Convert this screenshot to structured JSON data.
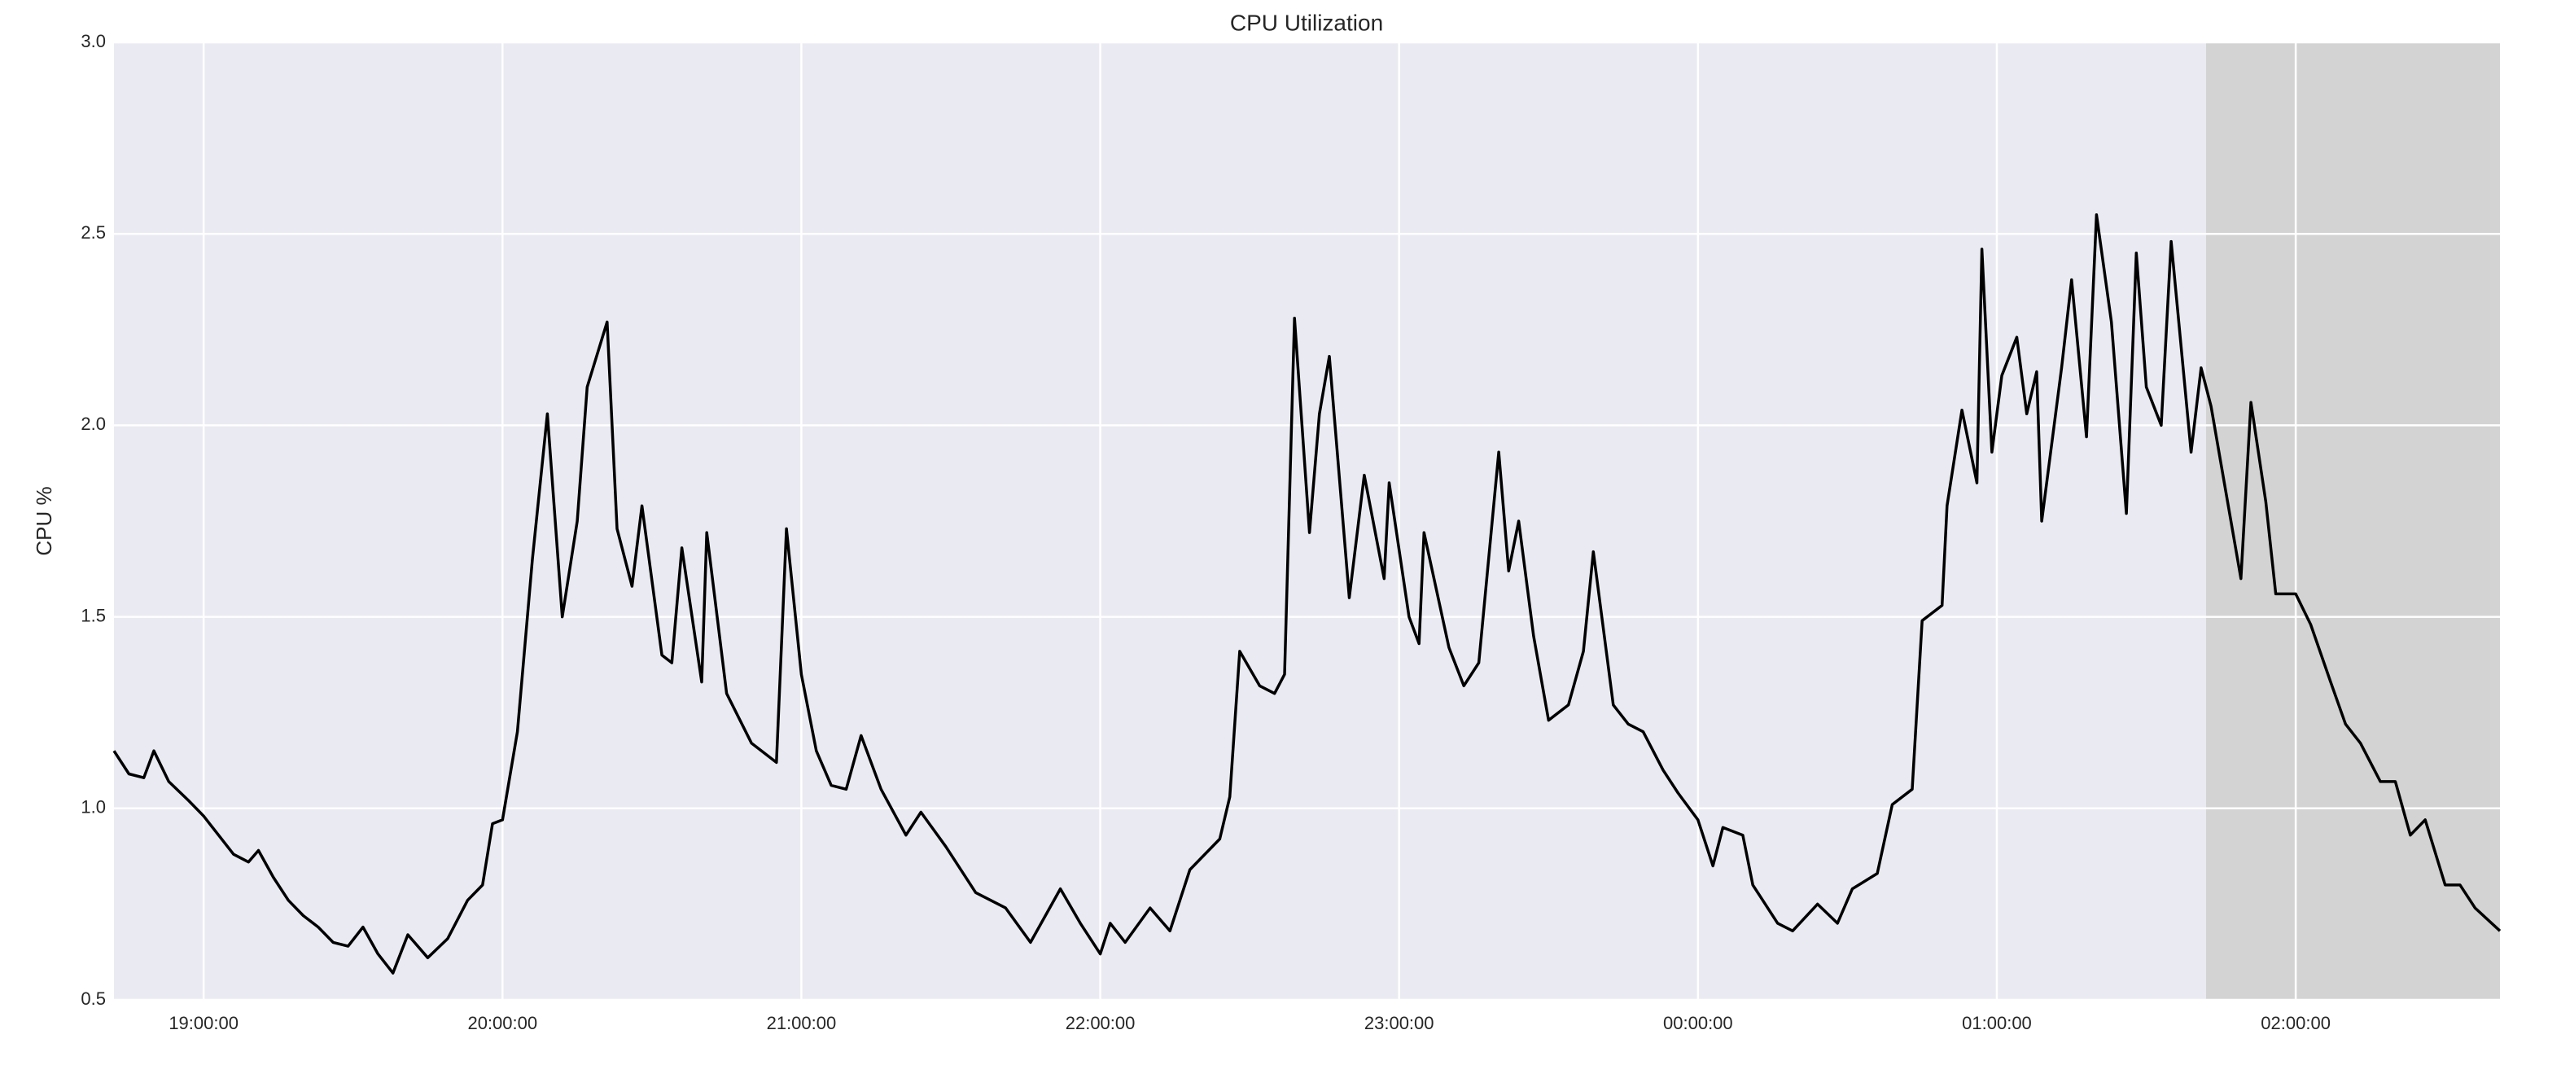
{
  "chart_data": {
    "type": "line",
    "title": "CPU Utilization",
    "y_label": "CPU %",
    "x": [
      "18:42:00",
      "18:45:00",
      "18:48:00",
      "18:50:00",
      "18:53:00",
      "18:57:00",
      "19:00:00",
      "19:03:00",
      "19:06:00",
      "19:09:00",
      "19:11:00",
      "19:14:00",
      "19:17:00",
      "19:20:00",
      "19:23:00",
      "19:26:00",
      "19:29:00",
      "19:32:00",
      "19:35:00",
      "19:38:00",
      "19:41:00",
      "19:45:00",
      "19:49:00",
      "19:53:00",
      "19:56:00",
      "19:58:00",
      "20:00:00",
      "20:03:00",
      "20:06:00",
      "20:09:00",
      "20:12:00",
      "20:15:00",
      "20:17:00",
      "20:21:00",
      "20:23:00",
      "20:26:00",
      "20:28:00",
      "20:32:00",
      "20:34:00",
      "20:36:00",
      "20:40:00",
      "20:41:00",
      "20:45:00",
      "20:50:00",
      "20:55:00",
      "20:57:00",
      "21:00:00",
      "21:03:00",
      "21:06:00",
      "21:09:00",
      "21:12:00",
      "21:16:00",
      "21:21:00",
      "21:24:00",
      "21:29:00",
      "21:35:00",
      "21:41:00",
      "21:46:00",
      "21:52:00",
      "21:56:00",
      "22:00:00",
      "22:02:00",
      "22:05:00",
      "22:10:00",
      "22:14:00",
      "22:18:00",
      "22:24:00",
      "22:26:00",
      "22:28:00",
      "22:32:00",
      "22:35:00",
      "22:37:00",
      "22:39:00",
      "22:42:00",
      "22:44:00",
      "22:46:00",
      "22:50:00",
      "22:53:00",
      "22:57:00",
      "22:58:00",
      "23:02:00",
      "23:04:00",
      "23:05:00",
      "23:10:00",
      "23:13:00",
      "23:16:00",
      "23:20:00",
      "23:22:00",
      "23:24:00",
      "23:27:00",
      "23:30:00",
      "23:34:00",
      "23:37:00",
      "23:39:00",
      "23:43:00",
      "23:46:00",
      "23:49:00",
      "23:53:00",
      "23:56:00",
      "00:00:00",
      "00:03:00",
      "00:05:00",
      "00:09:00",
      "00:11:00",
      "00:16:00",
      "00:19:00",
      "00:24:00",
      "00:28:00",
      "00:31:00",
      "00:36:00",
      "00:39:00",
      "00:43:00",
      "00:45:00",
      "00:49:00",
      "00:50:00",
      "00:53:00",
      "00:56:00",
      "00:57:00",
      "00:59:00",
      "01:01:00",
      "01:04:00",
      "01:06:00",
      "01:08:00",
      "01:09:00",
      "01:13:00",
      "01:15:00",
      "01:18:00",
      "01:20:00",
      "01:23:00",
      "01:26:00",
      "01:28:00",
      "01:30:00",
      "01:33:00",
      "01:35:00",
      "01:39:00",
      "01:41:00",
      "01:43:00",
      "01:45:00",
      "01:49:00",
      "01:51:00",
      "01:54:00",
      "01:56:00",
      "02:00:00",
      "02:03:00",
      "02:07:00",
      "02:10:00",
      "02:13:00",
      "02:17:00",
      "02:20:00",
      "02:23:00",
      "02:26:00",
      "02:30:00",
      "02:33:00",
      "02:36:00",
      "02:41:00"
    ],
    "values": [
      1.15,
      1.09,
      1.08,
      1.15,
      1.07,
      1.02,
      0.98,
      0.93,
      0.88,
      0.86,
      0.89,
      0.82,
      0.76,
      0.72,
      0.69,
      0.65,
      0.64,
      0.69,
      0.62,
      0.57,
      0.67,
      0.61,
      0.66,
      0.76,
      0.8,
      0.96,
      0.97,
      1.2,
      1.65,
      2.03,
      1.5,
      1.75,
      2.1,
      2.27,
      1.73,
      1.58,
      1.79,
      1.4,
      1.38,
      1.68,
      1.33,
      1.72,
      1.3,
      1.17,
      1.12,
      1.73,
      1.35,
      1.15,
      1.06,
      1.05,
      1.19,
      1.05,
      0.93,
      0.99,
      0.9,
      0.78,
      0.74,
      0.65,
      0.79,
      0.7,
      0.62,
      0.7,
      0.65,
      0.74,
      0.68,
      0.84,
      0.92,
      1.03,
      1.41,
      1.32,
      1.3,
      1.35,
      2.28,
      1.72,
      2.03,
      2.18,
      1.55,
      1.87,
      1.6,
      1.85,
      1.5,
      1.43,
      1.72,
      1.42,
      1.32,
      1.38,
      1.93,
      1.62,
      1.75,
      1.45,
      1.23,
      1.27,
      1.41,
      1.67,
      1.27,
      1.22,
      1.2,
      1.1,
      1.04,
      0.97,
      0.85,
      0.95,
      0.93,
      0.8,
      0.7,
      0.68,
      0.75,
      0.7,
      0.79,
      0.83,
      1.01,
      1.05,
      1.49,
      1.53,
      1.79,
      2.04,
      1.85,
      2.46,
      1.93,
      2.13,
      2.23,
      2.03,
      2.14,
      1.75,
      2.15,
      2.38,
      1.97,
      2.55,
      2.27,
      1.77,
      2.45,
      2.1,
      2.0,
      2.48,
      1.93,
      2.15,
      2.05,
      1.9,
      1.6,
      2.06,
      1.8,
      1.56,
      1.56,
      1.48,
      1.33,
      1.22,
      1.17,
      1.07,
      1.07,
      0.93,
      0.97,
      0.8,
      0.8,
      0.74,
      0.68
    ],
    "color": "#000000",
    "highlight": {
      "x": [
        "01:42:00",
        "02:41:00"
      ],
      "color": "#d3d3d3"
    },
    "xlim": [
      "18:42:00",
      "02:41:00"
    ],
    "xticks": [
      "19:00:00",
      "20:00:00",
      "21:00:00",
      "22:00:00",
      "23:00:00",
      "00:00:00",
      "01:00:00",
      "02:00:00"
    ],
    "ylim": [
      0.5,
      3.0
    ],
    "yticks": [
      0.5,
      {
        "value": 1,
        "label": "1.0"
      },
      1.5,
      {
        "value": 2,
        "label": "2.0"
      },
      2.5,
      {
        "value": 3,
        "label": "3.0"
      }
    ],
    "grid": true
  }
}
